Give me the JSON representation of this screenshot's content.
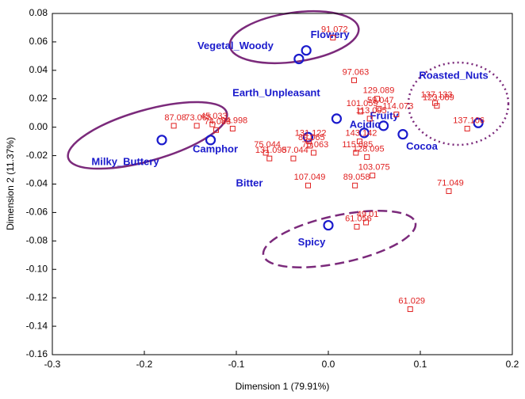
{
  "chart_data": {
    "type": "scatter",
    "xlabel": "Dimension 1 (79.91%)",
    "ylabel": "Dimension 2 (11.37%)",
    "xlim": [
      -0.3,
      0.2
    ],
    "xticks": [
      -0.3,
      -0.2,
      -0.1,
      {
        "value": 0,
        "label": "0.0"
      },
      0.1,
      0.2
    ],
    "ylim": [
      -0.16,
      0.08
    ],
    "yticks": [
      0.08,
      0.06,
      0.04,
      0.02,
      {
        "value": 0,
        "label": "0.00"
      },
      -0.02,
      -0.04,
      -0.06,
      -0.08,
      {
        "value": -0.1,
        "label": "-0.10"
      },
      -0.12,
      -0.14,
      -0.16
    ],
    "series": [
      {
        "color": "#1a1acc",
        "marker": "circle",
        "labels": [
          "Milky_Buttery",
          "Camphor",
          "Vegetal_Woody",
          "Flowery",
          "Earth_Unpleasant",
          "Acidic",
          "Fruity",
          "Cocoa",
          "Roasted_Nuts",
          "Bitter",
          "Spicy"
        ],
        "x": [
          -0.181,
          -0.128,
          -0.032,
          -0.024,
          0.009,
          0.039,
          0.06,
          0.081,
          0.163,
          -0.022,
          0.0
        ],
        "values": [
          -0.009,
          -0.009,
          0.048,
          0.054,
          0.006,
          -0.004,
          0.001,
          -0.005,
          0.003,
          -0.007,
          -0.069
        ]
      },
      {
        "color": "#e02020",
        "marker": "square",
        "labels": [
          "91.072",
          "97.063",
          "129.089",
          "59.047",
          "45.033",
          "73.065",
          "74.088",
          "87.08",
          "94.998",
          "101.059",
          "113.095",
          "114.073",
          "131.122",
          "143.142",
          "75.044",
          "89.065",
          "75.063",
          "115.085",
          "128.095",
          "131.095",
          "87.044",
          "107.049",
          "89.058",
          "103.075",
          "71.049",
          "49.01",
          "61.056",
          "61.029",
          "137.133",
          "123.089",
          "137.106"
        ],
        "x": [
          0.005,
          0.028,
          0.053,
          0.055,
          -0.126,
          -0.143,
          -0.122,
          -0.168,
          -0.104,
          0.035,
          0.045,
          0.074,
          -0.021,
          0.034,
          -0.068,
          -0.02,
          -0.016,
          0.03,
          0.042,
          -0.064,
          -0.038,
          -0.022,
          0.029,
          0.048,
          0.131,
          0.041,
          0.031,
          0.089,
          0.116,
          0.118,
          0.151
        ],
        "values": [
          0.063,
          0.033,
          0.02,
          0.013,
          0.002,
          0.001,
          -0.002,
          0.001,
          -0.001,
          0.011,
          0.006,
          0.009,
          -0.01,
          -0.01,
          -0.018,
          -0.013,
          -0.018,
          -0.018,
          -0.021,
          -0.022,
          -0.022,
          -0.041,
          -0.041,
          -0.034,
          -0.045,
          -0.067,
          -0.07,
          -0.128,
          0.017,
          0.015,
          -0.001
        ]
      }
    ]
  }
}
